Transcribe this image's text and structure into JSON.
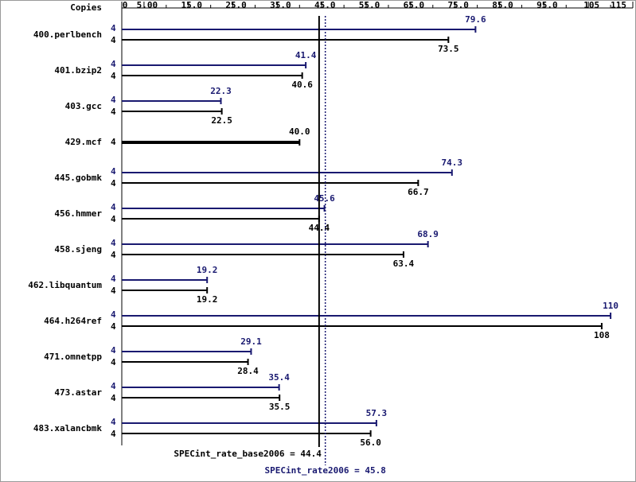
{
  "chart_data": {
    "type": "spec-bars",
    "copies_header": "Copies",
    "categories": [
      "400.perlbench",
      "401.bzip2",
      "403.gcc",
      "429.mcf",
      "445.gobmk",
      "456.hmmer",
      "458.sjeng",
      "462.libquantum",
      "464.h264ref",
      "471.omnetpp",
      "473.astar",
      "483.xalancbmk"
    ],
    "series": [
      {
        "color": "#191970",
        "role": "peak",
        "values": [
          79.6,
          41.4,
          22.3,
          null,
          74.3,
          45.6,
          68.9,
          19.2,
          110,
          29.1,
          35.4,
          57.3
        ],
        "value_labels": [
          "79.6",
          "41.4",
          "22.3",
          null,
          "74.3",
          "45.6",
          "68.9",
          "19.2",
          "110",
          "29.1",
          "35.4",
          "57.3"
        ],
        "copies": [
          4,
          4,
          4,
          null,
          4,
          4,
          4,
          4,
          4,
          4,
          4,
          4
        ]
      },
      {
        "color": "#000000",
        "role": "base",
        "values": [
          73.5,
          40.6,
          22.5,
          40.0,
          66.7,
          44.4,
          63.4,
          19.2,
          108,
          28.4,
          35.5,
          56.0
        ],
        "value_labels": [
          "73.5",
          "40.6",
          "22.5",
          "40.0",
          "66.7",
          "44.4",
          "63.4",
          "19.2",
          "108",
          "28.4",
          "35.5",
          "56.0"
        ],
        "copies": [
          4,
          4,
          4,
          4,
          4,
          4,
          4,
          4,
          4,
          4,
          4,
          4
        ]
      }
    ],
    "xlim": [
      0,
      115
    ],
    "xticks": [
      0,
      {
        "value": 5,
        "label": "5.00"
      },
      {
        "value": 15,
        "label": "15.0"
      },
      {
        "value": 25,
        "label": "25.0"
      },
      {
        "value": 35,
        "label": "35.0"
      },
      {
        "value": 45,
        "label": "45.0"
      },
      {
        "value": 55,
        "label": "55.0"
      },
      {
        "value": 65,
        "label": "65.0"
      },
      {
        "value": 75,
        "label": "75.0"
      },
      {
        "value": 85,
        "label": "85.0"
      },
      {
        "value": 95,
        "label": "95.0"
      },
      105,
      115
    ],
    "minor_xticks": [
      10,
      20,
      30,
      40,
      50,
      60,
      70,
      80,
      90,
      100,
      110
    ],
    "reference_lines": [
      {
        "value": 44.4,
        "label": "SPECint_rate_base2006 = 44.4",
        "color": "#000000",
        "style": "solid"
      },
      {
        "value": 45.8,
        "label": "SPECint_rate2006 = 45.8",
        "color": "#191970",
        "style": "dotted"
      }
    ]
  }
}
